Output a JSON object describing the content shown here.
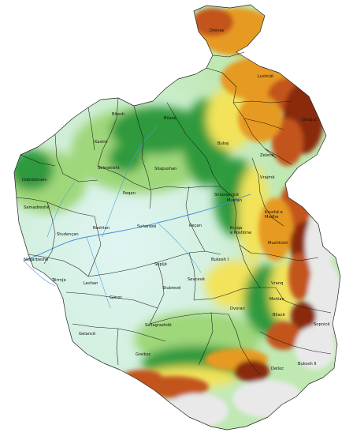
{
  "map": {
    "colors": {
      "lowland": "#dff4f0",
      "plain": "#c8ecc0",
      "hill": "#9fd77a",
      "forest": "#2f9a3c",
      "upland": "#f2e35a",
      "highland": "#e79a22",
      "mountain": "#c3541a",
      "peak": "#8a2a10",
      "snow": "#e9e9e9",
      "river": "#3b8fd4"
    },
    "labels": {
      "drenas_n": "Drenas",
      "lushnje": "Lushnjë",
      "gllogoc": "Gllogoc",
      "bitesh": "Bitesh",
      "kastro": "Kastro",
      "bilane": "Bilané",
      "bukaj": "Bukaj",
      "zelene": "Zelenë",
      "vrajme": "Vrajmë",
      "selmetisht": "Selmetisht",
      "dobridonien": "Dobridonien",
      "sllapushan": "Sllapushan",
      "shtarapojcë": "Shtarapojcë",
      "mustan": "Mustan",
      "krushë_mad": "Krushë e",
      "madhe": "Madhe",
      "samadrexhe": "Samadrexhë",
      "peqan": "Peqan",
      "reshtan": "Reshtan",
      "suharekë": "Suharekë",
      "recan": "Reçan",
      "kruqa": "Kruqa",
      "e_poshtme": "e Poshtme",
      "mushtisht": "Mushtisht",
      "studencan": "Studençan",
      "negarbeshe": "Negarbeshë",
      "bukosh_i": "Bukosh I",
      "sopijë": "Sopijë",
      "tërrnje": "Tërrnje",
      "leshan": "Leshan",
      "sevceve": "Sevcevë",
      "stubrevë": "Stubrevë",
      "gjinoc": "Gjinoc",
      "vranq": "Vranq",
      "dvoran": "Dvoran",
      "mohlan": "Mohlan",
      "sellagrazhdë": "Sellagrazhdë",
      "greikoc": "Greikoc",
      "gelancë": "Gelancë",
      "bllacë": "Bllacë",
      "sopnice": "Sopnicë",
      "delloc": "Delloc",
      "bukosh_ii": "Bukosh II"
    }
  }
}
